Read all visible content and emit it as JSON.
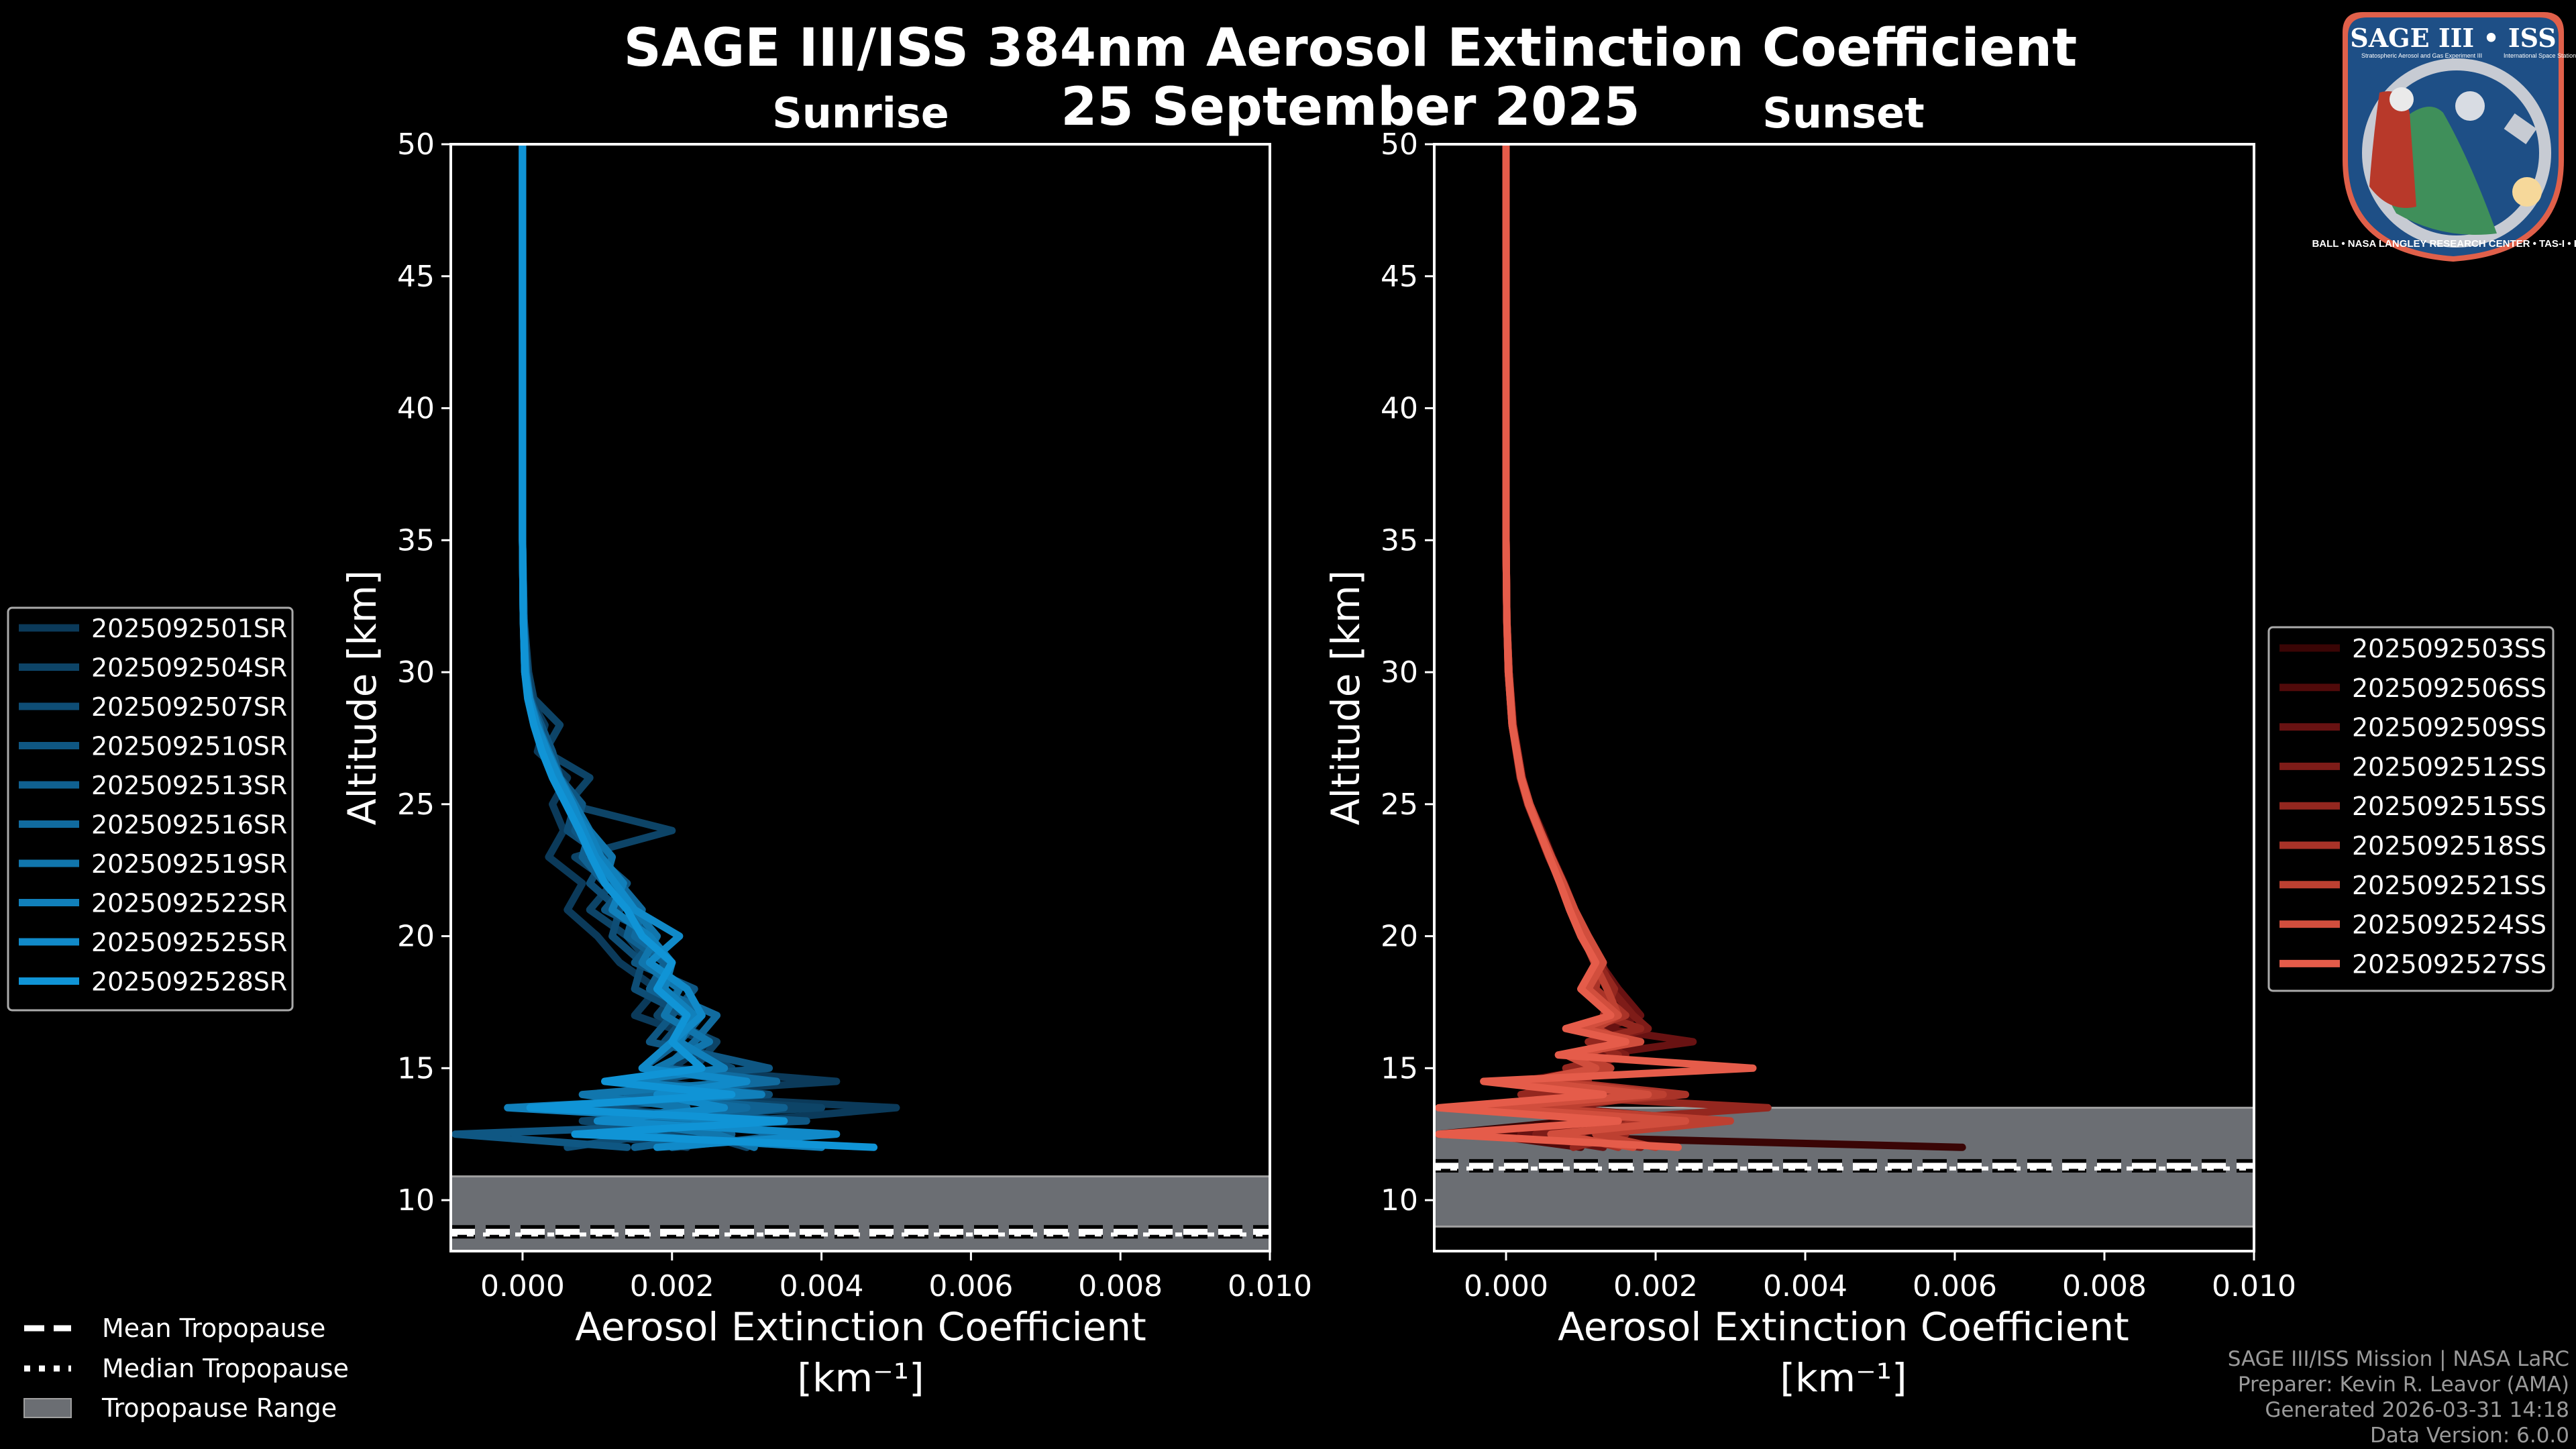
{
  "figure": {
    "title": "SAGE III/ISS 384nm Aerosol Extinction Coefficient",
    "date": "25 September 2025",
    "credits": [
      "SAGE III/ISS Mission | NASA LaRC",
      "Preparer: Kevin R. Leavor (AMA)",
      "Generated 2026-03-31 14:18",
      "Data Version: 6.0.0"
    ],
    "tropopause_legend": [
      {
        "label": "Mean Tropopause",
        "style": "dashed"
      },
      {
        "label": "Median Tropopause",
        "style": "dotted"
      },
      {
        "label": "Tropopause Range",
        "style": "patch"
      }
    ],
    "colors": {
      "background": "#000000",
      "tropopause_fill": "#6b6e73",
      "tropopause_edge": "#a0a0a0",
      "axis": "#ffffff"
    },
    "badge": {
      "title": "SAGE III • ISS",
      "subtitle_left": "Stratospheric Aerosol and Gas Experiment III",
      "subtitle_right": "International Space Station",
      "ring_text": "BALL • NASA LANGLEY RESEARCH CENTER • TAS-I • ESA",
      "colors": {
        "border": "#e0604a",
        "field": "#1e4f86",
        "ring": "#c7cbd3",
        "earth": "#3f8f5a"
      }
    }
  },
  "chart_data": [
    {
      "type": "line",
      "panel": "sunrise",
      "title": "Sunrise",
      "xlabel": "Aerosol Extinction Coefficient",
      "xunit": "[km⁻¹]",
      "ylabel": "Altitude [km]",
      "xlim": [
        -0.00096,
        0.01
      ],
      "ylim": [
        8.07,
        50
      ],
      "xticks": [
        0.0,
        0.002,
        0.004,
        0.006,
        0.008,
        0.01
      ],
      "xtick_labels": [
        "0.000",
        "0.002",
        "0.004",
        "0.006",
        "0.008",
        "0.010"
      ],
      "yticks": [
        10,
        15,
        20,
        25,
        30,
        35,
        40,
        45,
        50
      ],
      "ytick_labels": [
        "10",
        "15",
        "20",
        "25",
        "30",
        "35",
        "40",
        "45",
        "50"
      ],
      "legend_position": "left",
      "tropopause": {
        "mean": 8.8,
        "median": 8.8,
        "min": 8.0,
        "max": 10.9
      },
      "altitudes": [
        50,
        45,
        40,
        35,
        32,
        30,
        29,
        28,
        27,
        26,
        25,
        24,
        23,
        22,
        21,
        20,
        19,
        18,
        17,
        16,
        15,
        14.5,
        14,
        13.5,
        13,
        12.5,
        12
      ],
      "series": [
        {
          "name": "2025092501SR",
          "color": "#0b3a5a",
          "values": [
            0.0,
            0.0,
            0.0,
            0.0,
            1e-05,
            5e-05,
            0.0001,
            0.0003,
            0.0002,
            0.0006,
            0.0004,
            0.00055,
            0.00035,
            0.0008,
            0.0006,
            0.001,
            0.0013,
            0.0018,
            0.0015,
            0.0025,
            0.002,
            0.0042,
            0.0015,
            0.005,
            0.003,
            0.001,
            0.0022
          ]
        },
        {
          "name": "2025092504SR",
          "color": "#0d4467",
          "values": [
            0.0,
            0.0,
            0.0,
            0.0,
            2e-05,
            8e-05,
            0.00015,
            0.0005,
            0.0003,
            0.0009,
            0.0006,
            0.002,
            0.0007,
            0.0012,
            0.0009,
            0.0014,
            0.0017,
            0.0021,
            0.0018,
            0.0026,
            0.0023,
            0.0031,
            0.0012,
            0.004,
            0.0008,
            0.0024,
            0.003
          ]
        },
        {
          "name": "2025092507SR",
          "color": "#0e4d75",
          "values": [
            0.0,
            0.0,
            0.0,
            0.0,
            1e-05,
            4e-05,
            0.00012,
            0.0002,
            0.00035,
            0.00045,
            0.0007,
            0.0006,
            0.0011,
            0.0009,
            0.0013,
            0.0012,
            0.0016,
            0.0015,
            0.0022,
            0.0019,
            0.0028,
            0.0017,
            0.0033,
            0.0009,
            0.0026,
            0.0018,
            0.0006
          ]
        },
        {
          "name": "2025092510SR",
          "color": "#0f5783",
          "values": [
            0.0,
            0.0,
            0.0,
            0.0,
            2e-05,
            6e-05,
            0.0001,
            0.00025,
            0.0004,
            0.0005,
            0.0008,
            0.0007,
            0.001,
            0.0014,
            0.0011,
            0.0018,
            0.0015,
            0.0023,
            0.002,
            0.0017,
            0.0033,
            0.0012,
            0.0027,
            0.0006,
            0.0038,
            -0.0009,
            0.0014
          ]
        },
        {
          "name": "2025092513SR",
          "color": "#106191",
          "values": [
            0.0,
            0.0,
            0.0,
            0.0,
            1e-05,
            3e-05,
            8e-05,
            0.00018,
            0.0003,
            0.00045,
            0.0006,
            0.0009,
            0.0008,
            0.0011,
            0.0015,
            0.0014,
            0.0019,
            0.0017,
            0.0024,
            0.0021,
            0.0016,
            0.0029,
            0.0011,
            0.0035,
            0.002,
            0.0028,
            0.0015
          ]
        },
        {
          "name": "2025092516SR",
          "color": "#116b9f",
          "values": [
            0.0,
            0.0,
            0.0,
            0.0,
            1e-05,
            5e-05,
            9e-05,
            0.00022,
            0.0003,
            0.0005,
            0.00065,
            0.00085,
            0.001,
            0.0013,
            0.0016,
            0.0015,
            0.002,
            0.0018,
            0.0026,
            0.0023,
            0.0019,
            0.0034,
            0.0014,
            0.003,
            0.0016,
            0.0037,
            0.002
          ]
        },
        {
          "name": "2025092519SR",
          "color": "#1176ad",
          "values": [
            0.0,
            0.0,
            0.0,
            0.0,
            1e-05,
            4e-05,
            0.0001,
            0.0002,
            0.00035,
            0.0005,
            0.0007,
            0.0009,
            0.0012,
            0.0011,
            0.0015,
            0.0018,
            0.0016,
            0.0021,
            0.0019,
            0.0025,
            0.0018,
            0.003,
            0.0008,
            0.0022,
            0.0013,
            0.0026,
            0.0031
          ]
        },
        {
          "name": "2025092522SR",
          "color": "#1180bb",
          "values": [
            0.0,
            0.0,
            0.0,
            0.0,
            1e-05,
            3e-05,
            8e-05,
            0.00017,
            0.00028,
            0.00044,
            0.00062,
            0.00088,
            0.00105,
            0.00135,
            0.0012,
            0.0017,
            0.002,
            0.0019,
            0.0023,
            0.0021,
            0.0027,
            0.0014,
            0.0032,
            -0.0002,
            0.0029,
            0.0012,
            0.004
          ]
        },
        {
          "name": "2025092525SR",
          "color": "#118ac9",
          "values": [
            0.0,
            0.0,
            0.0,
            0.0,
            1e-05,
            4e-05,
            9e-05,
            0.00019,
            0.00033,
            0.00049,
            0.00067,
            0.00082,
            0.00098,
            0.00124,
            0.0015,
            0.0021,
            0.0017,
            0.0022,
            0.0024,
            0.002,
            0.0016,
            0.003,
            0.0018,
            0.0027,
            0.001,
            0.0042,
            0.0018
          ]
        },
        {
          "name": "2025092528SR",
          "color": "#1094d6",
          "values": [
            0.0,
            0.0,
            0.0,
            0.0,
            1e-05,
            3e-05,
            7e-05,
            0.00015,
            0.00026,
            0.0004,
            0.00058,
            0.00076,
            0.00092,
            0.0011,
            0.0014,
            0.0016,
            0.002,
            0.0018,
            0.0022,
            0.002,
            0.0024,
            0.0011,
            0.0028,
            0.0001,
            0.0035,
            0.0007,
            0.0047
          ]
        }
      ]
    },
    {
      "type": "line",
      "panel": "sunset",
      "title": "Sunset",
      "xlabel": "Aerosol Extinction Coefficient",
      "xunit": "[km⁻¹]",
      "ylabel": "Altitude [km]",
      "xlim": [
        -0.00096,
        0.01
      ],
      "ylim": [
        8.07,
        50
      ],
      "xticks": [
        0.0,
        0.002,
        0.004,
        0.006,
        0.008,
        0.01
      ],
      "xtick_labels": [
        "0.000",
        "0.002",
        "0.004",
        "0.006",
        "0.008",
        "0.010"
      ],
      "yticks": [
        10,
        15,
        20,
        25,
        30,
        35,
        40,
        45,
        50
      ],
      "ytick_labels": [
        "10",
        "15",
        "20",
        "25",
        "30",
        "35",
        "40",
        "45",
        "50"
      ],
      "legend_position": "right",
      "tropopause": {
        "mean": 11.3,
        "median": 11.3,
        "min": 9.0,
        "max": 13.5
      },
      "altitudes": [
        50,
        45,
        40,
        35,
        32,
        30,
        28,
        26,
        25,
        24,
        23,
        22,
        21,
        20,
        19,
        18,
        17,
        16.5,
        16,
        15.5,
        15,
        14.5,
        14,
        13.5,
        13,
        12.5,
        12
      ],
      "series": [
        {
          "name": "2025092503SS",
          "color": "#3a0505",
          "values": [
            0.0,
            0.0,
            0.0,
            0.0,
            1e-05,
            3e-05,
            8e-05,
            0.0002,
            0.0003,
            0.00045,
            0.0006,
            0.00075,
            0.0009,
            0.001,
            0.0012,
            0.0014,
            0.0016,
            0.0012,
            0.0015,
            0.0011,
            0.0013,
            0.0006,
            0.0011,
            0.0005,
            0.0009,
            -0.0009,
            0.0061
          ]
        },
        {
          "name": "2025092506SS",
          "color": "#510a0a",
          "values": [
            0.0,
            0.0,
            0.0,
            0.0,
            1e-05,
            4e-05,
            0.0001,
            0.00022,
            0.00032,
            0.00048,
            0.00062,
            0.00078,
            0.00092,
            0.0011,
            0.0013,
            0.0011,
            0.0015,
            0.001,
            0.0014,
            0.0009,
            0.0012,
            0.0002,
            0.0015,
            0.0006,
            0.0022,
            -0.0003,
            0.001
          ]
        },
        {
          "name": "2025092509SS",
          "color": "#681212",
          "values": [
            0.0,
            0.0,
            0.0,
            0.0,
            1e-05,
            3e-05,
            9e-05,
            0.00021,
            0.00031,
            0.00046,
            0.00058,
            0.00074,
            0.00088,
            0.00105,
            0.00125,
            0.0015,
            0.0018,
            0.0013,
            0.0025,
            0.0012,
            0.0014,
            0.0004,
            0.0018,
            0.0007,
            0.0028,
            0.0002,
            0.0013
          ]
        },
        {
          "name": "2025092512SS",
          "color": "#7e1c18",
          "values": [
            0.0,
            0.0,
            0.0,
            0.0,
            1e-05,
            4e-05,
            8e-05,
            0.0002,
            0.0003,
            0.00044,
            0.00059,
            0.00076,
            0.00091,
            0.00108,
            0.00128,
            0.0014,
            0.0017,
            0.0019,
            0.0012,
            0.0016,
            0.001,
            0.0005,
            0.002,
            0.0008,
            0.0025,
            0.0004,
            0.0018
          ]
        },
        {
          "name": "2025092515SS",
          "color": "#94271f",
          "values": [
            0.0,
            0.0,
            0.0,
            0.0,
            1e-05,
            3e-05,
            8e-05,
            0.00019,
            0.00029,
            0.00043,
            0.00057,
            0.00073,
            0.00089,
            0.00103,
            0.00122,
            0.00145,
            0.0013,
            0.0018,
            0.0011,
            0.0015,
            0.0008,
            0.0011,
            0.0002,
            0.0035,
            0.001,
            0.0016,
            0.0009
          ]
        },
        {
          "name": "2025092518SS",
          "color": "#a93328",
          "values": [
            0.0,
            0.0,
            0.0,
            0.0,
            1e-05,
            4e-05,
            9e-05,
            0.00021,
            0.00031,
            0.00045,
            0.0006,
            0.00075,
            0.0009,
            0.00106,
            0.00126,
            0.0012,
            0.0016,
            0.0011,
            0.0017,
            0.0009,
            0.0013,
            0.0007,
            0.0024,
            0.0003,
            0.002,
            0.0008,
            0.0015
          ]
        },
        {
          "name": "2025092521SS",
          "color": "#bd4031",
          "values": [
            0.0,
            0.0,
            0.0,
            0.0,
            1e-05,
            3e-05,
            8e-05,
            0.0002,
            0.0003,
            0.00044,
            0.00058,
            0.00073,
            0.00088,
            0.00102,
            0.00118,
            0.00135,
            0.0015,
            0.0012,
            0.0016,
            0.001,
            0.0014,
            0.0006,
            0.0021,
            0.0004,
            0.003,
            0.0012,
            0.002
          ]
        },
        {
          "name": "2025092524SS",
          "color": "#d14e3d",
          "values": [
            0.0,
            0.0,
            0.0,
            0.0,
            1e-05,
            4e-05,
            9e-05,
            0.00021,
            0.00032,
            0.00046,
            0.00061,
            0.00077,
            0.00092,
            0.0011,
            0.0013,
            0.0011,
            0.0015,
            0.001,
            0.0018,
            0.0008,
            0.0012,
            0.0003,
            0.0019,
            -0.0002,
            0.0024,
            0.0006,
            0.0017
          ]
        },
        {
          "name": "2025092527SS",
          "color": "#e55c4a",
          "values": [
            0.0,
            0.0,
            0.0,
            0.0,
            1e-05,
            3e-05,
            8e-05,
            0.0002,
            0.0003,
            0.00044,
            0.00058,
            0.00072,
            0.00085,
            0.001,
            0.0012,
            0.001,
            0.0014,
            0.0008,
            0.0016,
            0.0007,
            0.0033,
            -0.0003,
            0.0013,
            -0.0009,
            0.0015,
            -0.0009,
            0.0023
          ]
        }
      ]
    }
  ]
}
